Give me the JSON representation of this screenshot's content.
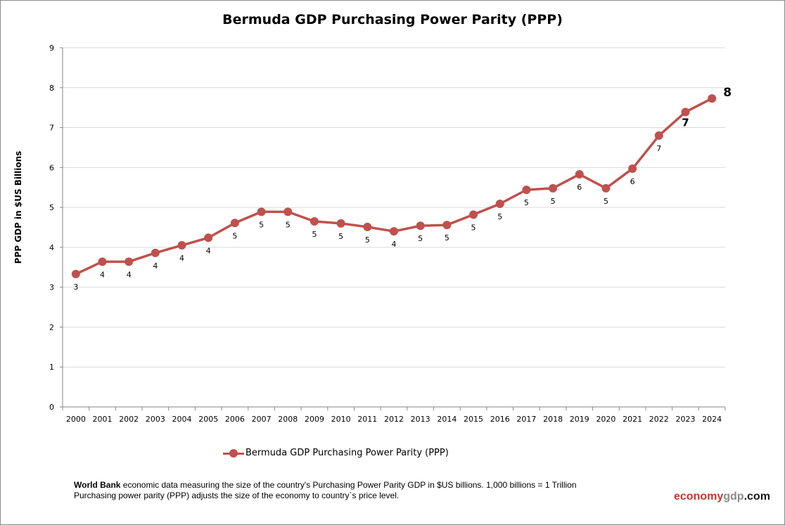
{
  "chart_data": {
    "type": "line",
    "title": "Bermuda GDP Purchasing Power Parity (PPP)",
    "xlabel": "",
    "ylabel": "PPP GDP in $US Billions",
    "ylim": [
      0,
      9
    ],
    "yticks": [
      "0",
      "1",
      "2",
      "3",
      "4",
      "5",
      "6",
      "7",
      "8",
      "9"
    ],
    "grid": true,
    "legend_position": "bottom",
    "color": "#c0504d",
    "categories": [
      "2000",
      "2001",
      "2002",
      "2003",
      "2004",
      "2005",
      "2006",
      "2007",
      "2008",
      "2009",
      "2010",
      "2011",
      "2012",
      "2013",
      "2014",
      "2015",
      "2016",
      "2017",
      "2018",
      "2019",
      "2020",
      "2021",
      "2022",
      "2023",
      "2024"
    ],
    "series": [
      {
        "name": "Bermuda GDP Purchasing Power Parity (PPP)",
        "values": [
          3.33,
          3.64,
          3.64,
          3.86,
          4.05,
          4.24,
          4.61,
          4.89,
          4.89,
          4.65,
          4.6,
          4.51,
          4.4,
          4.54,
          4.56,
          4.82,
          5.09,
          5.44,
          5.48,
          5.83,
          5.48,
          5.97,
          6.8,
          7.39,
          7.73
        ],
        "labels": [
          "3",
          "4",
          "4",
          "4",
          "4",
          "4",
          "5",
          "5",
          "5",
          "5",
          "5",
          "5",
          "4",
          "5",
          "5",
          "5",
          "5",
          "5",
          "5",
          "6",
          "5",
          "6",
          "7",
          "7",
          "8"
        ]
      }
    ]
  },
  "footer": {
    "source_bold": "World Bank",
    "line1": " economic data  measuring the size of the country's Purchasing Power Parity GDP in $US billions. 1,000 billions = 1 Trillion",
    "line2": "Purchasing power parity (PPP) adjusts the size of the economy to country`s price level."
  },
  "logo": {
    "part1": "economy",
    "part2": "gdp",
    "part3": ".com",
    "color1": "#c0392b",
    "color2": "#8c8c8c",
    "color3": "#1a1a1a"
  }
}
